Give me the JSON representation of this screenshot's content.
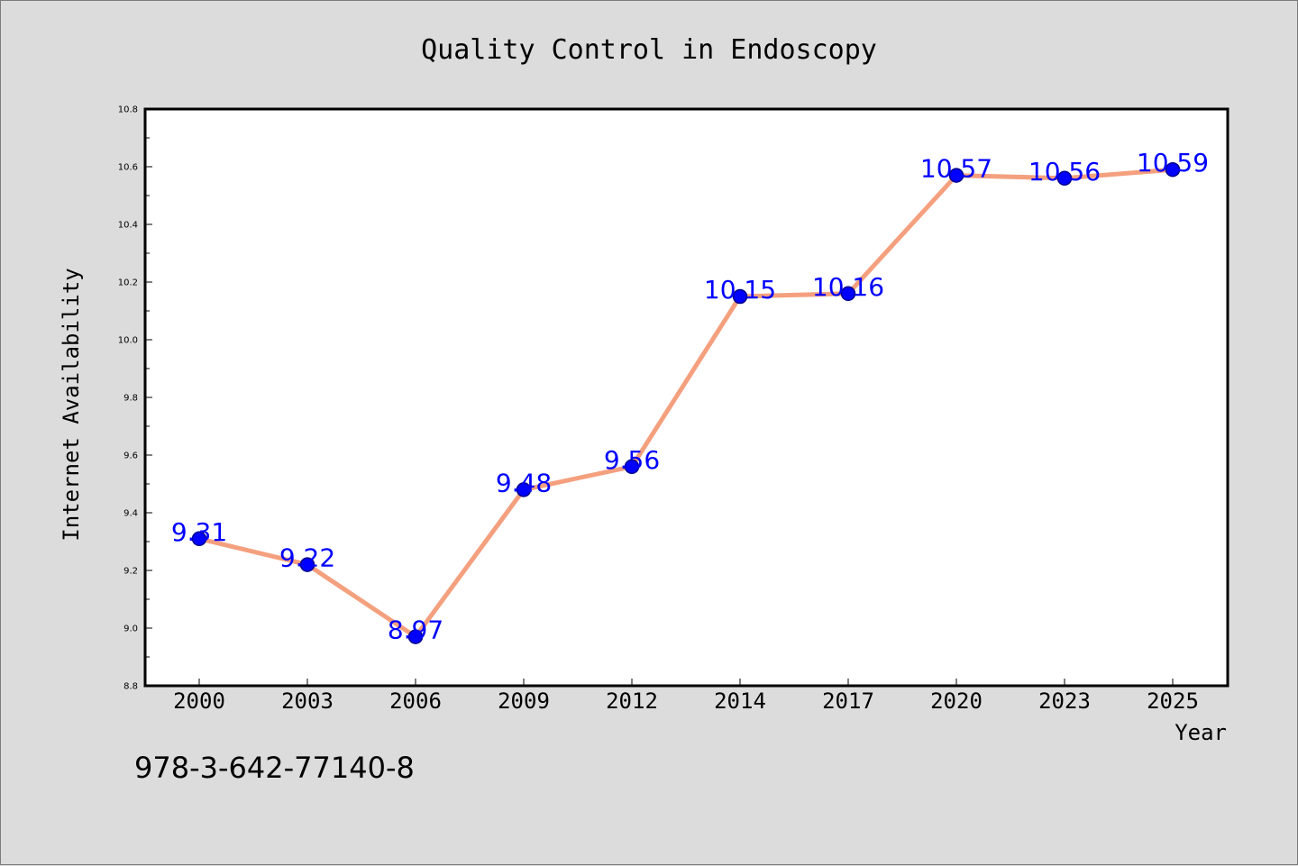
{
  "chart_data": {
    "type": "line",
    "title": "Quality Control in Endoscopy",
    "xlabel": "Year",
    "ylabel": "Internet Availability",
    "categories": [
      "2000",
      "2003",
      "2006",
      "2009",
      "2012",
      "2014",
      "2017",
      "2020",
      "2023",
      "2025"
    ],
    "series": [
      {
        "values": [
          9.31,
          9.22,
          8.97,
          9.48,
          9.56,
          10.15,
          10.16,
          10.57,
          10.56,
          10.59
        ]
      }
    ],
    "data_labels": [
      "9.31",
      "9.22",
      "8.97",
      "9.48",
      "9.56",
      "10.15",
      "10.16",
      "10.57",
      "10.56",
      "10.59"
    ],
    "yticks": [
      "8.8",
      "9.0",
      "9.2",
      "9.4",
      "9.6",
      "9.8",
      "10.0",
      "10.2",
      "10.4",
      "10.6",
      "10.8"
    ],
    "ylim": [
      8.8,
      10.8
    ],
    "grid": false,
    "legend": "none",
    "colors": {
      "line": "#f4a07e",
      "marker": "#0000ff",
      "marker_edge": "#00008b",
      "data_label": "#0000ff",
      "plot_bg": "#ffffff",
      "page_bg": "#dcdcdc"
    }
  },
  "footnote": "978-3-642-77140-8"
}
